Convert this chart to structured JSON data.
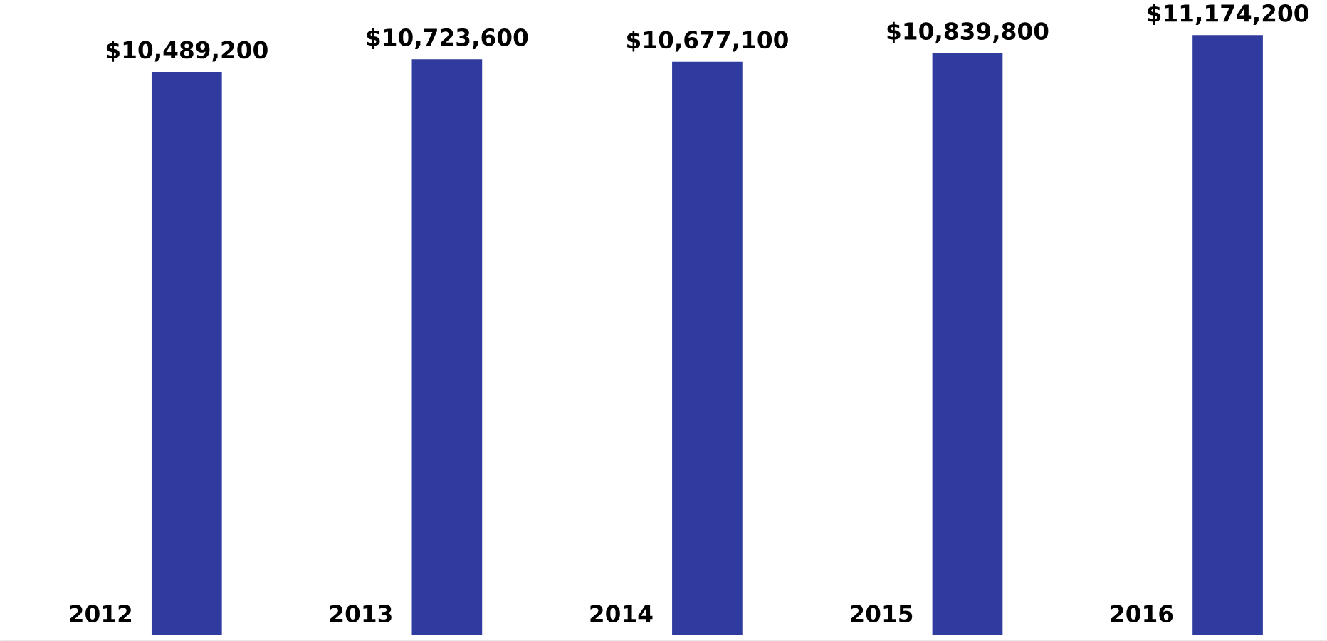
{
  "chart_data": {
    "type": "bar",
    "categories": [
      "2012",
      "2013",
      "2014",
      "2015",
      "2016"
    ],
    "values": [
      10489200,
      10723600,
      10677100,
      10839800,
      11174200
    ],
    "value_labels": [
      "$10,489,200",
      "$10,723,600",
      "$10,677,100",
      "$10,839,800",
      "$11,174,200"
    ],
    "color": "#2f3b9e"
  }
}
